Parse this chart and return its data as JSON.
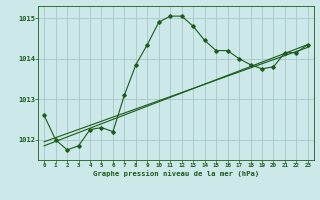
{
  "title": "Graphe pression niveau de la mer (hPa)",
  "bg_color": "#cce8e8",
  "grid_color": "#aacccc",
  "line_color": "#1a5c1a",
  "xlim": [
    -0.5,
    23.5
  ],
  "ylim": [
    1011.5,
    1015.3
  ],
  "yticks": [
    1012,
    1013,
    1014,
    1015
  ],
  "xtick_labels": [
    "0",
    "1",
    "2",
    "3",
    "4",
    "5",
    "6",
    "7",
    "8",
    "9",
    "10",
    "11",
    "12",
    "13",
    "14",
    "15",
    "16",
    "17",
    "18",
    "19",
    "20",
    "21",
    "22",
    "23"
  ],
  "line1_x": [
    0,
    1,
    2,
    3,
    4,
    5,
    6,
    7,
    8,
    9,
    10,
    11,
    12,
    13,
    14,
    15,
    16,
    17,
    18,
    19,
    20,
    21,
    22,
    23
  ],
  "line1_y": [
    1012.6,
    1012.0,
    1011.75,
    1011.85,
    1012.25,
    1012.3,
    1012.2,
    1013.1,
    1013.85,
    1014.35,
    1014.9,
    1015.05,
    1015.05,
    1014.8,
    1014.45,
    1014.2,
    1014.2,
    1014.0,
    1013.85,
    1013.75,
    1013.8,
    1014.15,
    1014.15,
    1014.35
  ],
  "line2_x": [
    0,
    23
  ],
  "line2_y": [
    1011.85,
    1014.35
  ],
  "line3_x": [
    0,
    23
  ],
  "line3_y": [
    1011.95,
    1014.28
  ]
}
